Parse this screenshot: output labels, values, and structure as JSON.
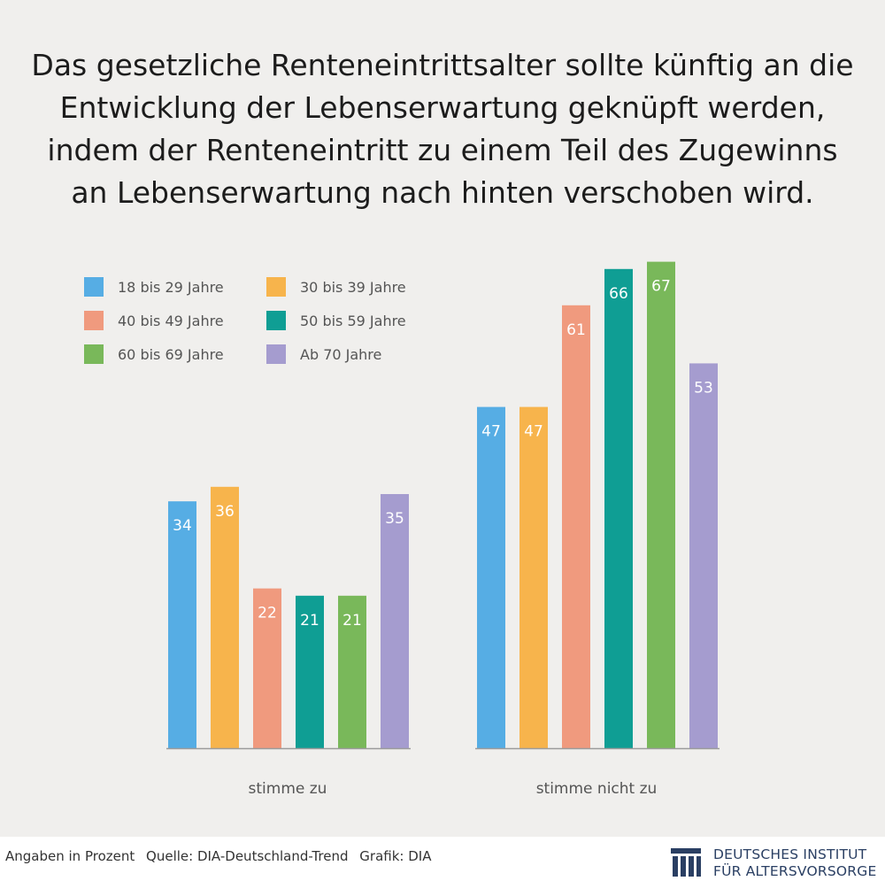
{
  "title_lines": [
    "Das gesetzliche Renteneintrittsalter sollte künftig an die",
    "Entwicklung der Lebenserwartung geknüpft werden,",
    "indem der Renteneintritt zu einem Teil des Zugewinns",
    "an Lebenserwartung nach hinten verschoben wird."
  ],
  "chart_data": {
    "type": "bar",
    "title": "Das gesetzliche Renteneintrittsalter sollte künftig an die Entwicklung der Lebenserwartung geknüpft werden, indem der Renteneintritt zu einem Teil des Zugewinns an Lebenserwartung nach hinten verschoben wird.",
    "categories": [
      "stimme zu",
      "stimme nicht zu"
    ],
    "series": [
      {
        "name": "18 bis 29 Jahre",
        "color": "#56ade4",
        "values": [
          34,
          47
        ]
      },
      {
        "name": "30 bis 39 Jahre",
        "color": "#f7b44c",
        "values": [
          36,
          47
        ]
      },
      {
        "name": "40 bis 49 Jahre",
        "color": "#f09a7e",
        "values": [
          22,
          61
        ]
      },
      {
        "name": "50 bis 59 Jahre",
        "color": "#0f9e94",
        "values": [
          21,
          66
        ]
      },
      {
        "name": "60 bis 69 Jahre",
        "color": "#79b85a",
        "values": [
          21,
          67
        ]
      },
      {
        "name": "Ab 70 Jahre",
        "color": "#a59ccf",
        "values": [
          35,
          53
        ]
      }
    ],
    "xlabel": "",
    "ylabel": "",
    "ylim": [
      0,
      100
    ],
    "grid": false,
    "legend_position": "top-left",
    "data_labels": true,
    "axis_line_color": "#9b9b9b"
  },
  "legend_items": [
    {
      "label": "18 bis 29 Jahre",
      "color": "#56ade4"
    },
    {
      "label": "30 bis 39 Jahre",
      "color": "#f7b44c"
    },
    {
      "label": "40 bis 49 Jahre",
      "color": "#f09a7e"
    },
    {
      "label": "50 bis 59 Jahre",
      "color": "#0f9e94"
    },
    {
      "label": "60 bis 69 Jahre",
      "color": "#79b85a"
    },
    {
      "label": "Ab 70 Jahre",
      "color": "#a59ccf"
    }
  ],
  "footer": {
    "unit_note": "Angaben in Prozent",
    "source": "Quelle: DIA-Deutschland-Trend",
    "graphic": "Grafik: DIA"
  },
  "logo": {
    "line1": "DEUTSCHES INSTITUT",
    "line2": "FÜR ALTERSVORSORGE",
    "color": "#2a3f63",
    "icon": "dia-logo-icon"
  }
}
